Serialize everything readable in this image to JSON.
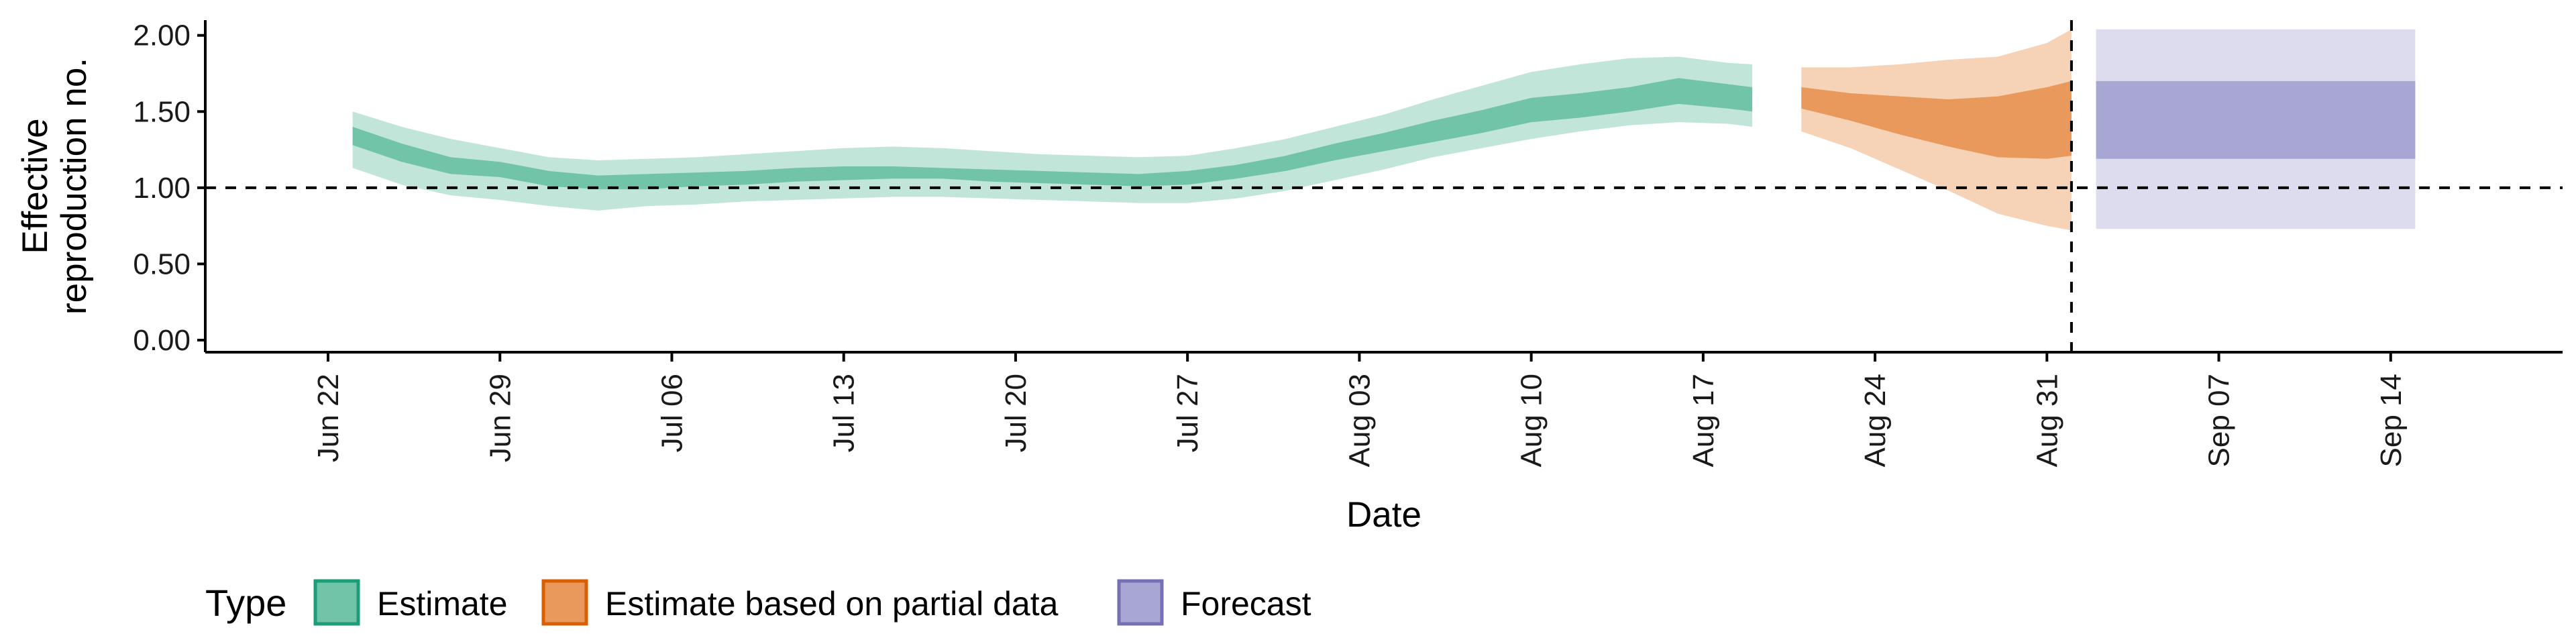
{
  "chart_data": {
    "type": "area",
    "xlabel": "Date",
    "ylabel_lines": [
      "Effective",
      "reproduction no."
    ],
    "ylim": [
      0,
      2.1
    ],
    "y_ticks": [
      0.0,
      0.5,
      1.0,
      1.5,
      2.0
    ],
    "y_tick_labels": [
      "0.00",
      "0.50",
      "1.00",
      "1.50",
      "2.00"
    ],
    "x_range": [
      "2020-06-17",
      "2020-09-21"
    ],
    "x_ticks": [
      "2020-06-22",
      "2020-06-29",
      "2020-07-06",
      "2020-07-13",
      "2020-07-20",
      "2020-07-27",
      "2020-08-03",
      "2020-08-10",
      "2020-08-17",
      "2020-08-24",
      "2020-08-31",
      "2020-09-07",
      "2020-09-14"
    ],
    "x_tick_labels": [
      "Jun 22",
      "Jun 29",
      "Jul 06",
      "Jul 13",
      "Jul 20",
      "Jul 27",
      "Aug 03",
      "Aug 10",
      "Aug 17",
      "Aug 24",
      "Aug 31",
      "Sep 07",
      "Sep 14"
    ],
    "reference_hline": 1.0,
    "reference_vline": "2020-09-01",
    "legend": {
      "title": "Type",
      "position": "bottom-left",
      "items": [
        {
          "label": "Estimate",
          "fill": "#72c4a9",
          "border": "#1b9e77"
        },
        {
          "label": "Estimate based on partial data",
          "fill": "#e8995b",
          "border": "#d95f02"
        },
        {
          "label": "Forecast",
          "fill": "#a8a6d2",
          "border": "#7570b3"
        }
      ]
    },
    "series": [
      {
        "name": "Estimate",
        "color_inner": "#72c4a9",
        "color_outer": "#c2e5d9",
        "x": [
          "2020-06-23",
          "2020-06-25",
          "2020-06-27",
          "2020-06-29",
          "2020-07-01",
          "2020-07-03",
          "2020-07-05",
          "2020-07-07",
          "2020-07-09",
          "2020-07-11",
          "2020-07-13",
          "2020-07-15",
          "2020-07-17",
          "2020-07-19",
          "2020-07-21",
          "2020-07-23",
          "2020-07-25",
          "2020-07-27",
          "2020-07-29",
          "2020-07-31",
          "2020-08-02",
          "2020-08-04",
          "2020-08-06",
          "2020-08-08",
          "2020-08-10",
          "2020-08-12",
          "2020-08-14",
          "2020-08-16",
          "2020-08-18",
          "2020-08-19"
        ],
        "outer_lower": [
          1.13,
          1.02,
          0.95,
          0.92,
          0.88,
          0.85,
          0.88,
          0.89,
          0.91,
          0.92,
          0.93,
          0.94,
          0.94,
          0.93,
          0.92,
          0.91,
          0.9,
          0.9,
          0.93,
          0.98,
          1.05,
          1.12,
          1.2,
          1.26,
          1.32,
          1.37,
          1.41,
          1.43,
          1.42,
          1.4
        ],
        "outer_upper": [
          1.5,
          1.4,
          1.32,
          1.26,
          1.2,
          1.18,
          1.19,
          1.2,
          1.22,
          1.24,
          1.26,
          1.27,
          1.26,
          1.24,
          1.22,
          1.21,
          1.2,
          1.21,
          1.26,
          1.32,
          1.4,
          1.48,
          1.58,
          1.67,
          1.76,
          1.81,
          1.85,
          1.86,
          1.82,
          1.81
        ],
        "inner_lower": [
          1.28,
          1.17,
          1.09,
          1.07,
          1.01,
          0.99,
          0.99,
          1.01,
          1.02,
          1.04,
          1.05,
          1.06,
          1.06,
          1.04,
          1.03,
          1.02,
          1.01,
          1.02,
          1.06,
          1.11,
          1.18,
          1.24,
          1.3,
          1.36,
          1.43,
          1.46,
          1.5,
          1.55,
          1.52,
          1.5
        ],
        "inner_upper": [
          1.4,
          1.29,
          1.2,
          1.17,
          1.11,
          1.08,
          1.09,
          1.1,
          1.11,
          1.13,
          1.14,
          1.14,
          1.13,
          1.12,
          1.11,
          1.1,
          1.09,
          1.11,
          1.15,
          1.21,
          1.29,
          1.36,
          1.44,
          1.51,
          1.59,
          1.62,
          1.66,
          1.72,
          1.68,
          1.66
        ]
      },
      {
        "name": "Estimate based on partial data",
        "color_inner": "#e8995b",
        "color_outer": "#f6d3b7",
        "x": [
          "2020-08-21",
          "2020-08-23",
          "2020-08-25",
          "2020-08-27",
          "2020-08-29",
          "2020-08-31",
          "2020-09-01"
        ],
        "outer_lower": [
          1.37,
          1.26,
          1.12,
          0.98,
          0.83,
          0.75,
          0.72
        ],
        "outer_upper": [
          1.79,
          1.79,
          1.81,
          1.84,
          1.86,
          1.95,
          2.04
        ],
        "inner_lower": [
          1.52,
          1.44,
          1.35,
          1.27,
          1.2,
          1.19,
          1.21
        ],
        "inner_upper": [
          1.66,
          1.62,
          1.6,
          1.58,
          1.6,
          1.66,
          1.7
        ]
      },
      {
        "name": "Forecast",
        "color_inner": "#a8a6d2",
        "color_outer": "#dcdcee",
        "x": [
          "2020-09-02",
          "2020-09-15"
        ],
        "outer_lower": [
          0.73,
          0.73
        ],
        "outer_upper": [
          2.04,
          2.04
        ],
        "inner_lower": [
          1.19,
          1.19
        ],
        "inner_upper": [
          1.7,
          1.7
        ]
      }
    ]
  }
}
